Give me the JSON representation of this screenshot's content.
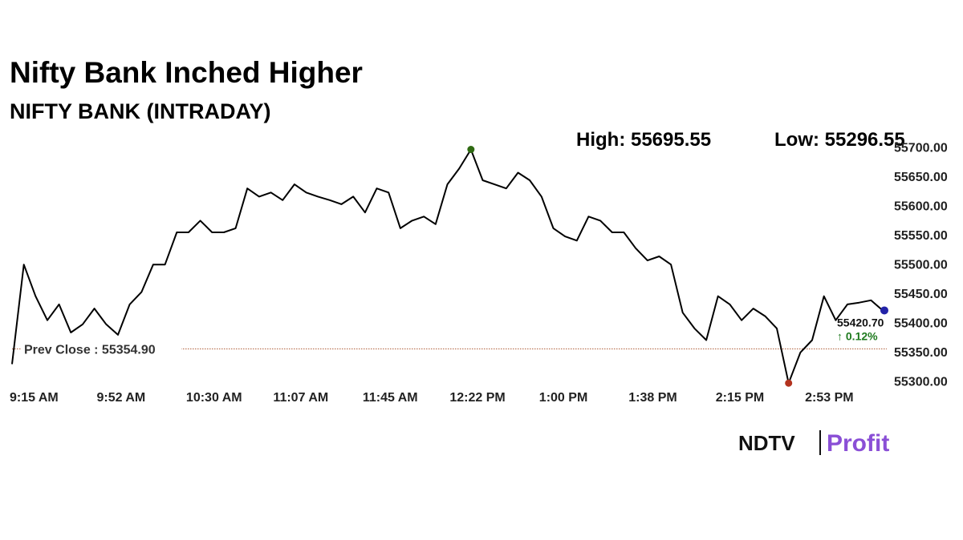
{
  "chart_data": {
    "type": "line",
    "title": "Nifty Bank Inched Higher",
    "subtitle": "NIFTY BANK (INTRADAY)",
    "high": {
      "value": 55695.55,
      "label": "High: 55695.55",
      "color": "#2f6a12"
    },
    "low": {
      "value": 55296.55,
      "label": "Low: 55296.55",
      "color": "#b3331f"
    },
    "prev_close": {
      "value": 55354.9,
      "label": "Prev Close : 55354.90",
      "color": "#b0603c"
    },
    "last": {
      "value": 55420.7,
      "label": "55420.70",
      "color": "#2323a8"
    },
    "change_label": "↑ 0.12%",
    "logo": [
      "NDTV",
      "Profit"
    ],
    "x": [
      "9:15 AM",
      "9:20 AM",
      "9:25 AM",
      "9:30 AM",
      "9:35 AM",
      "9:40 AM",
      "9:45 AM",
      "9:50 AM",
      "9:55 AM",
      "10:00 AM",
      "10:05 AM",
      "10:10 AM",
      "10:15 AM",
      "10:20 AM",
      "10:25 AM",
      "10:30 AM",
      "10:35 AM",
      "10:40 AM",
      "10:45 AM",
      "10:50 AM",
      "10:55 AM",
      "11:00 AM",
      "11:05 AM",
      "11:10 AM",
      "11:15 AM",
      "11:20 AM",
      "11:25 AM",
      "11:30 AM",
      "11:35 AM",
      "11:40 AM",
      "11:45 AM",
      "11:50 AM",
      "11:55 AM",
      "12:00 PM",
      "12:05 PM",
      "12:10 PM",
      "12:15 PM",
      "12:20 PM",
      "12:25 PM",
      "12:30 PM",
      "12:35 PM",
      "12:40 PM",
      "12:45 PM",
      "12:50 PM",
      "12:55 PM",
      "1:00 PM",
      "1:05 PM",
      "1:10 PM",
      "1:15 PM",
      "1:20 PM",
      "1:25 PM",
      "1:30 PM",
      "1:35 PM",
      "1:40 PM",
      "1:45 PM",
      "1:50 PM",
      "1:55 PM",
      "2:00 PM",
      "2:05 PM",
      "2:10 PM",
      "2:15 PM",
      "2:20 PM",
      "2:25 PM",
      "2:30 PM",
      "2:35 PM",
      "2:40 PM",
      "2:45 PM",
      "2:50 PM",
      "2:55 PM",
      "3:00 PM",
      "3:05 PM",
      "3:10 PM",
      "3:15 PM",
      "3:20 PM",
      "3:25 PM"
    ],
    "series": [
      {
        "name": "NIFTY BANK",
        "color": "#000000",
        "values": [
          55329,
          55499,
          55445,
          55404,
          55431,
          55383,
          55397,
          55424,
          55397,
          55379,
          55431,
          55452,
          55499,
          55499,
          55554,
          55554,
          55574,
          55554,
          55554,
          55561,
          55629,
          55615,
          55622,
          55609,
          55636,
          55622,
          55615,
          55609,
          55602,
          55615,
          55588,
          55629,
          55622,
          55561,
          55574,
          55581,
          55568,
          55636,
          55663,
          55695.55,
          55643,
          55636,
          55629,
          55656,
          55643,
          55615,
          55561,
          55547,
          55540,
          55581,
          55574,
          55554,
          55554,
          55527,
          55506,
          55513,
          55499,
          55417,
          55390,
          55370,
          55445,
          55431,
          55404,
          55424,
          55411,
          55390,
          55296.55,
          55349,
          55370,
          55445,
          55404,
          55431,
          55434,
          55438,
          55420.7
        ]
      }
    ],
    "xlim": [
      "9:15 AM",
      "3:25 PM"
    ],
    "xticks": [
      "9:15 AM",
      "9:52 AM",
      "10:30 AM",
      "11:07 AM",
      "11:45 AM",
      "12:22 PM",
      "1:00 PM",
      "1:38 PM",
      "2:15 PM",
      "2:53 PM"
    ],
    "ylim": [
      55290,
      55710
    ],
    "yticks": [
      {
        "value": 55300,
        "label": "55300.00"
      },
      {
        "value": 55350,
        "label": "55350.00"
      },
      {
        "value": 55400,
        "label": "55400.00"
      },
      {
        "value": 55450,
        "label": "55450.00"
      },
      {
        "value": 55500,
        "label": "55500.00"
      },
      {
        "value": 55550,
        "label": "55550.00"
      },
      {
        "value": 55600,
        "label": "55600.00"
      },
      {
        "value": 55650,
        "label": "55650.00"
      },
      {
        "value": 55700,
        "label": "55700.00"
      }
    ],
    "grid": false
  }
}
